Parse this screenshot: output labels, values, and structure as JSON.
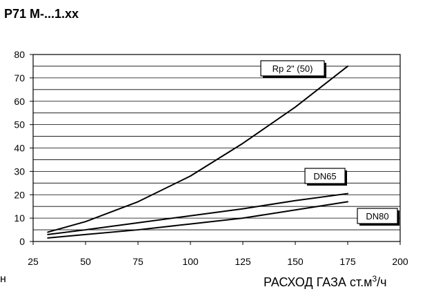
{
  "header": {
    "title": "P71 M-...1.xx"
  },
  "left_fragment": "н",
  "x_axis": {
    "label_main": "РАСХОД  ГАЗА ст.м",
    "label_sup": "3",
    "label_unit": "/ч"
  },
  "chart_data": {
    "type": "line",
    "xlabel": "РАСХОД  ГАЗА ст.м3/ч",
    "ylabel": "",
    "xlim": [
      25,
      200
    ],
    "ylim": [
      0,
      80
    ],
    "x_ticks": [
      25,
      50,
      75,
      100,
      125,
      150,
      175,
      200
    ],
    "y_ticks": [
      0,
      10,
      20,
      30,
      40,
      50,
      60,
      70,
      80
    ],
    "grid": {
      "horizontal": true,
      "vertical": false,
      "minor_y_step": 5
    },
    "series": [
      {
        "name": "Rp 2\" (50)",
        "x": [
          32,
          50,
          75,
          100,
          125,
          150,
          175
        ],
        "y": [
          4,
          8.5,
          17,
          28,
          42,
          57.5,
          75
        ]
      },
      {
        "name": "DN65",
        "x": [
          32,
          50,
          75,
          100,
          125,
          150,
          175
        ],
        "y": [
          3,
          5,
          8,
          11,
          14,
          17.5,
          20.5
        ]
      },
      {
        "name": "DN80",
        "x": [
          32,
          50,
          75,
          100,
          125,
          150,
          175
        ],
        "y": [
          1.5,
          3,
          5,
          7.5,
          10,
          13.5,
          17
        ]
      }
    ]
  },
  "colors": {
    "line": "#000000",
    "grid": "#000000",
    "background": "#ffffff"
  }
}
